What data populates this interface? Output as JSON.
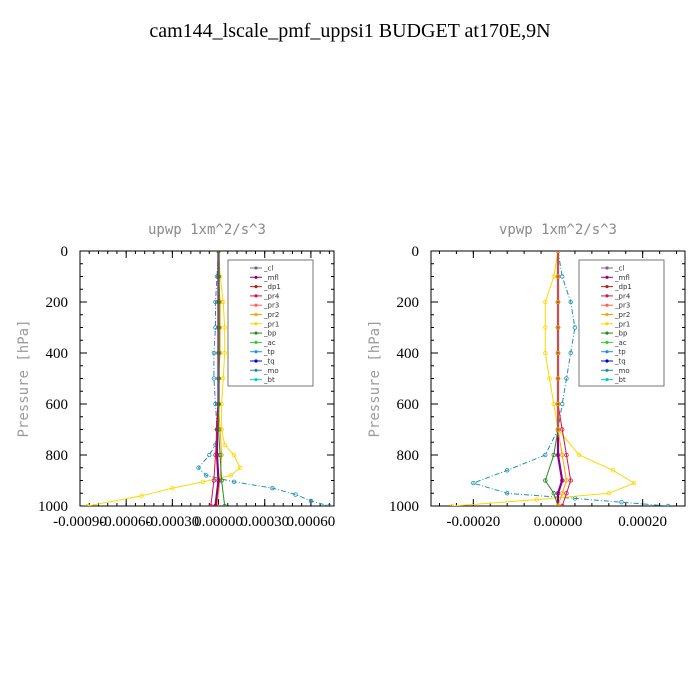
{
  "title": "cam144_lscale_pmf_uppsi1  BUDGET at170E,9N",
  "colors": {
    "_cl": "#7b5ea7",
    "_mfl": "#8b008b",
    "_dp1": "#b22222",
    "_pr4": "#dc143c",
    "_pr3": "#ff6347",
    "_pr2": "#ffa500",
    "_pr1": "#ffd700",
    "_bp": "#228b22",
    "_ac": "#32cd32",
    "_tp": "#1e90ff",
    "_tq": "#0000cd",
    "_mo": "#1e90b4",
    "_bt": "#00ced1"
  },
  "chart_data": [
    {
      "type": "line",
      "title": "upwp   1xm^2/s^3",
      "ylabel": "Pressure [hPa]",
      "xlabel": "",
      "xlim": [
        -0.0009,
        0.00075
      ],
      "ylim": [
        1000,
        0
      ],
      "xticks": [
        -0.0009,
        -0.0006,
        -0.0003,
        0.0,
        0.0003,
        0.0006
      ],
      "xtick_labels": [
        "-0.00090",
        "-0.00060",
        "-0.00030",
        "0.00000",
        "0.00030",
        "0.00060"
      ],
      "yticks": [
        0,
        200,
        400,
        600,
        800,
        1000
      ],
      "ytick_labels": [
        "0",
        "200",
        "400",
        "600",
        "800",
        "1000"
      ],
      "legend": [
        "_cl",
        "_mfl",
        "_dp1",
        "_pr4",
        "_pr3",
        "_pr2",
        "_pr1",
        "_bp",
        "_ac",
        "_tp",
        "_tq",
        "_mo",
        "_bt"
      ],
      "legend_position": "top-right",
      "series": [
        {
          "name": "_mo",
          "x": [
            0.0,
            -1e-05,
            -2e-05,
            -2e-05,
            -3e-05,
            -3e-05,
            -2e-05,
            -1e-05,
            -2e-05,
            -6e-05,
            -0.00013,
            -8e-05,
            0.0001,
            0.00035,
            0.0005,
            0.0006,
            0.00072
          ],
          "y": [
            0,
            100,
            200,
            300,
            400,
            500,
            600,
            700,
            760,
            800,
            850,
            880,
            905,
            930,
            955,
            980,
            1000
          ]
        },
        {
          "name": "_pr1",
          "x": [
            0.0,
            1e-05,
            3e-05,
            4e-05,
            4e-05,
            3e-05,
            2e-05,
            2e-05,
            4e-05,
            0.0001,
            0.00014,
            8e-05,
            -0.0001,
            -0.0003,
            -0.0005,
            -0.00085
          ],
          "y": [
            0,
            100,
            200,
            300,
            400,
            500,
            600,
            700,
            760,
            800,
            850,
            880,
            905,
            930,
            960,
            1000
          ]
        },
        {
          "name": "_pr2",
          "x": [
            0.0,
            0.0,
            1e-05,
            1e-05,
            1e-05,
            0.0,
            0.0,
            1e-05,
            2e-05,
            1e-05,
            -1e-05
          ],
          "y": [
            0,
            100,
            200,
            300,
            400,
            500,
            600,
            700,
            800,
            900,
            1000
          ]
        },
        {
          "name": "_mfl",
          "x": [
            0.0,
            0.0,
            0.0,
            0.0,
            0.0,
            0.0,
            0.0,
            -1e-05,
            -1e-05,
            0.0,
            -2e-05
          ],
          "y": [
            0,
            100,
            200,
            300,
            400,
            500,
            600,
            700,
            800,
            900,
            1000
          ]
        },
        {
          "name": "_pr4",
          "x": [
            0.0,
            0.0,
            0.0,
            0.0,
            0.0,
            0.0,
            0.0,
            -1e-05,
            -2e-05,
            -3e-05,
            -5e-05
          ],
          "y": [
            0,
            100,
            200,
            300,
            400,
            500,
            600,
            700,
            800,
            900,
            1000
          ]
        },
        {
          "name": "_bp",
          "x": [
            0.0,
            0.0,
            0.0,
            0.0,
            0.0,
            0.0,
            0.0,
            0.0,
            1e-05,
            2e-05,
            4e-05
          ],
          "y": [
            0,
            100,
            200,
            300,
            400,
            500,
            600,
            700,
            800,
            900,
            1000
          ]
        }
      ]
    },
    {
      "type": "line",
      "title": "vpwp   1xm^2/s^3",
      "ylabel": "Pressure [hPa]",
      "xlabel": "",
      "xlim": [
        -0.0003,
        0.0003
      ],
      "ylim": [
        1000,
        0
      ],
      "xticks": [
        -0.0002,
        0.0,
        0.0002
      ],
      "xtick_labels": [
        "-0.00020",
        "0.00000",
        "0.00020"
      ],
      "yticks": [
        0,
        200,
        400,
        600,
        800,
        1000
      ],
      "ytick_labels": [
        "0",
        "200",
        "400",
        "600",
        "800",
        "1000"
      ],
      "legend": [
        "_cl",
        "_mfl",
        "_dp1",
        "_pr4",
        "_pr3",
        "_pr2",
        "_pr1",
        "_bp",
        "_ac",
        "_tp",
        "_tq",
        "_mo",
        "_bt"
      ],
      "legend_position": "top-right",
      "series": [
        {
          "name": "_mo",
          "x": [
            0.0,
            1e-05,
            3e-05,
            4e-05,
            3e-05,
            2e-05,
            1e-05,
            0.0,
            -3e-05,
            -0.00012,
            -0.0002,
            -0.00012,
            4e-05,
            0.00015,
            0.00026
          ],
          "y": [
            0,
            100,
            200,
            300,
            400,
            500,
            600,
            700,
            800,
            860,
            910,
            950,
            970,
            985,
            1000
          ]
        },
        {
          "name": "_pr1",
          "x": [
            0.0,
            -1e-05,
            -3e-05,
            -3e-05,
            -3e-05,
            -2e-05,
            -1e-05,
            0.0,
            5e-05,
            0.00013,
            0.00018,
            0.00012,
            -5e-05,
            -0.00025
          ],
          "y": [
            0,
            100,
            200,
            300,
            400,
            500,
            600,
            700,
            800,
            860,
            910,
            950,
            975,
            1000
          ]
        },
        {
          "name": "_pr4",
          "x": [
            0.0,
            0.0,
            0.0,
            0.0,
            0.0,
            0.0,
            0.0,
            1e-05,
            2e-05,
            3e-05,
            2e-05,
            1e-05
          ],
          "y": [
            0,
            100,
            200,
            300,
            400,
            500,
            600,
            700,
            800,
            900,
            950,
            1000
          ]
        },
        {
          "name": "_mfl",
          "x": [
            0.0,
            0.0,
            0.0,
            0.0,
            0.0,
            0.0,
            0.0,
            0.0,
            0.0,
            1e-05,
            0.0,
            0.0
          ],
          "y": [
            0,
            100,
            200,
            300,
            400,
            500,
            600,
            700,
            800,
            900,
            950,
            1000
          ]
        },
        {
          "name": "_bp",
          "x": [
            0.0,
            0.0,
            0.0,
            0.0,
            0.0,
            0.0,
            0.0,
            0.0,
            -1e-05,
            -3e-05,
            -1e-05,
            0.0
          ],
          "y": [
            0,
            100,
            200,
            300,
            400,
            500,
            600,
            700,
            800,
            900,
            950,
            1000
          ]
        },
        {
          "name": "_pr2",
          "x": [
            0.0,
            0.0,
            0.0,
            0.0,
            0.0,
            0.0,
            0.0,
            0.0,
            1e-05,
            2e-05,
            1e-05,
            0.0
          ],
          "y": [
            0,
            100,
            200,
            300,
            400,
            500,
            600,
            700,
            800,
            900,
            950,
            1000
          ]
        }
      ]
    }
  ]
}
